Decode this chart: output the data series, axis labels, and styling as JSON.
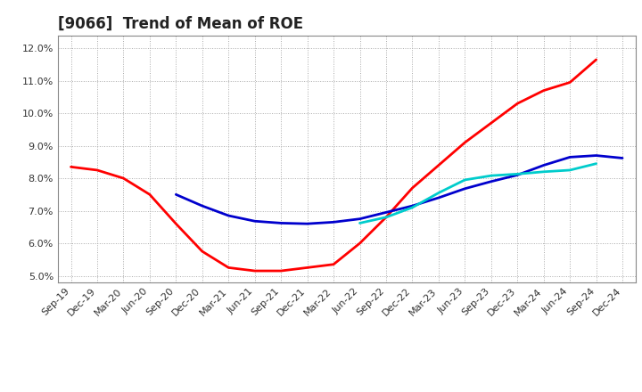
{
  "title": "[9066]  Trend of Mean of ROE",
  "ylim": [
    0.048,
    0.124
  ],
  "yticks": [
    0.05,
    0.06,
    0.07,
    0.08,
    0.09,
    0.1,
    0.11,
    0.12
  ],
  "x_labels": [
    "Sep-19",
    "Dec-19",
    "Mar-20",
    "Jun-20",
    "Sep-20",
    "Dec-20",
    "Mar-21",
    "Jun-21",
    "Sep-21",
    "Dec-21",
    "Mar-22",
    "Jun-22",
    "Sep-22",
    "Dec-22",
    "Mar-23",
    "Jun-23",
    "Sep-23",
    "Dec-23",
    "Mar-24",
    "Jun-24",
    "Sep-24",
    "Dec-24"
  ],
  "series_3y": [
    0.0835,
    0.0825,
    0.08,
    0.075,
    0.066,
    0.0575,
    0.0525,
    0.0515,
    0.0515,
    0.0525,
    0.0535,
    0.06,
    0.068,
    0.077,
    0.084,
    0.091,
    0.097,
    0.103,
    0.107,
    0.1095,
    0.1165,
    null
  ],
  "series_5y": [
    null,
    null,
    null,
    null,
    0.075,
    0.0715,
    0.0685,
    0.0668,
    0.0662,
    0.066,
    0.0665,
    0.0675,
    0.0695,
    0.0715,
    0.074,
    0.0768,
    0.079,
    0.081,
    0.084,
    0.0865,
    0.087,
    0.0862
  ],
  "series_7y": [
    null,
    null,
    null,
    null,
    null,
    null,
    null,
    null,
    null,
    null,
    null,
    0.0662,
    0.068,
    0.071,
    0.0755,
    0.0795,
    0.0808,
    0.0813,
    0.082,
    0.0825,
    0.0845,
    null
  ],
  "series_10y": [
    null,
    null,
    null,
    null,
    null,
    null,
    null,
    null,
    null,
    null,
    null,
    null,
    null,
    null,
    null,
    null,
    null,
    null,
    null,
    null,
    null,
    null
  ],
  "color_3y": "#ff0000",
  "color_5y": "#0000cd",
  "color_7y": "#00cccc",
  "color_10y": "#008000",
  "linewidth": 2.0,
  "background_color": "#ffffff",
  "grid_color": "#aaaaaa",
  "title_fontsize": 12,
  "tick_fontsize": 8
}
